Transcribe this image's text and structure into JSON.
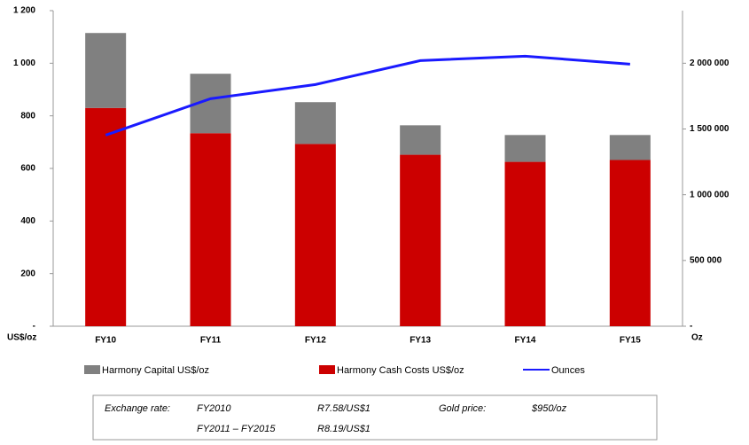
{
  "chart_data": {
    "type": "bar",
    "categories": [
      "FY10",
      "FY11",
      "FY12",
      "FY13",
      "FY14",
      "FY15"
    ],
    "series": [
      {
        "name": "Harmony Cash Costs US$/oz",
        "color": "#cc0000",
        "values": [
          830,
          734,
          693,
          652,
          625,
          632
        ]
      },
      {
        "name": "Harmony Capital US$/oz",
        "color": "#808080",
        "values": [
          285,
          226,
          159,
          112,
          102,
          95
        ]
      },
      {
        "name": "Ounces",
        "color": "#1a1aff",
        "type": "line",
        "axis": "y2",
        "values": [
          1453000,
          1730000,
          1838000,
          2020000,
          2054000,
          1993000
        ]
      }
    ],
    "legend_order": [
      "Harmony Capital US$/oz",
      "Harmony Cash Costs US$/oz",
      "Ounces"
    ],
    "ylabel": "US$/oz",
    "y2label": "Oz",
    "ylim": [
      0,
      1200
    ],
    "yticks": [
      {
        "value": 0,
        "label": "-"
      },
      {
        "value": 200,
        "label": "200"
      },
      {
        "value": 400,
        "label": "400"
      },
      {
        "value": 600,
        "label": "600"
      },
      {
        "value": 800,
        "label": "800"
      },
      {
        "value": 1000,
        "label": "1 000"
      },
      {
        "value": 1200,
        "label": "1 200"
      }
    ],
    "y2lim": [
      0,
      2400000
    ],
    "y2ticks": [
      {
        "value": 0,
        "label": "-"
      },
      {
        "value": 500000,
        "label": "500 000"
      },
      {
        "value": 1000000,
        "label": "1 000 000"
      },
      {
        "value": 1500000,
        "label": "1 500 000"
      },
      {
        "value": 2000000,
        "label": "2 000 000"
      }
    ],
    "notes": [
      [
        "Exchange rate:",
        "FY2010",
        "R7.58/US$1",
        "Gold price:",
        "$950/oz"
      ],
      [
        "FY2011 – FY2015",
        "R8.19/US$1"
      ]
    ]
  }
}
